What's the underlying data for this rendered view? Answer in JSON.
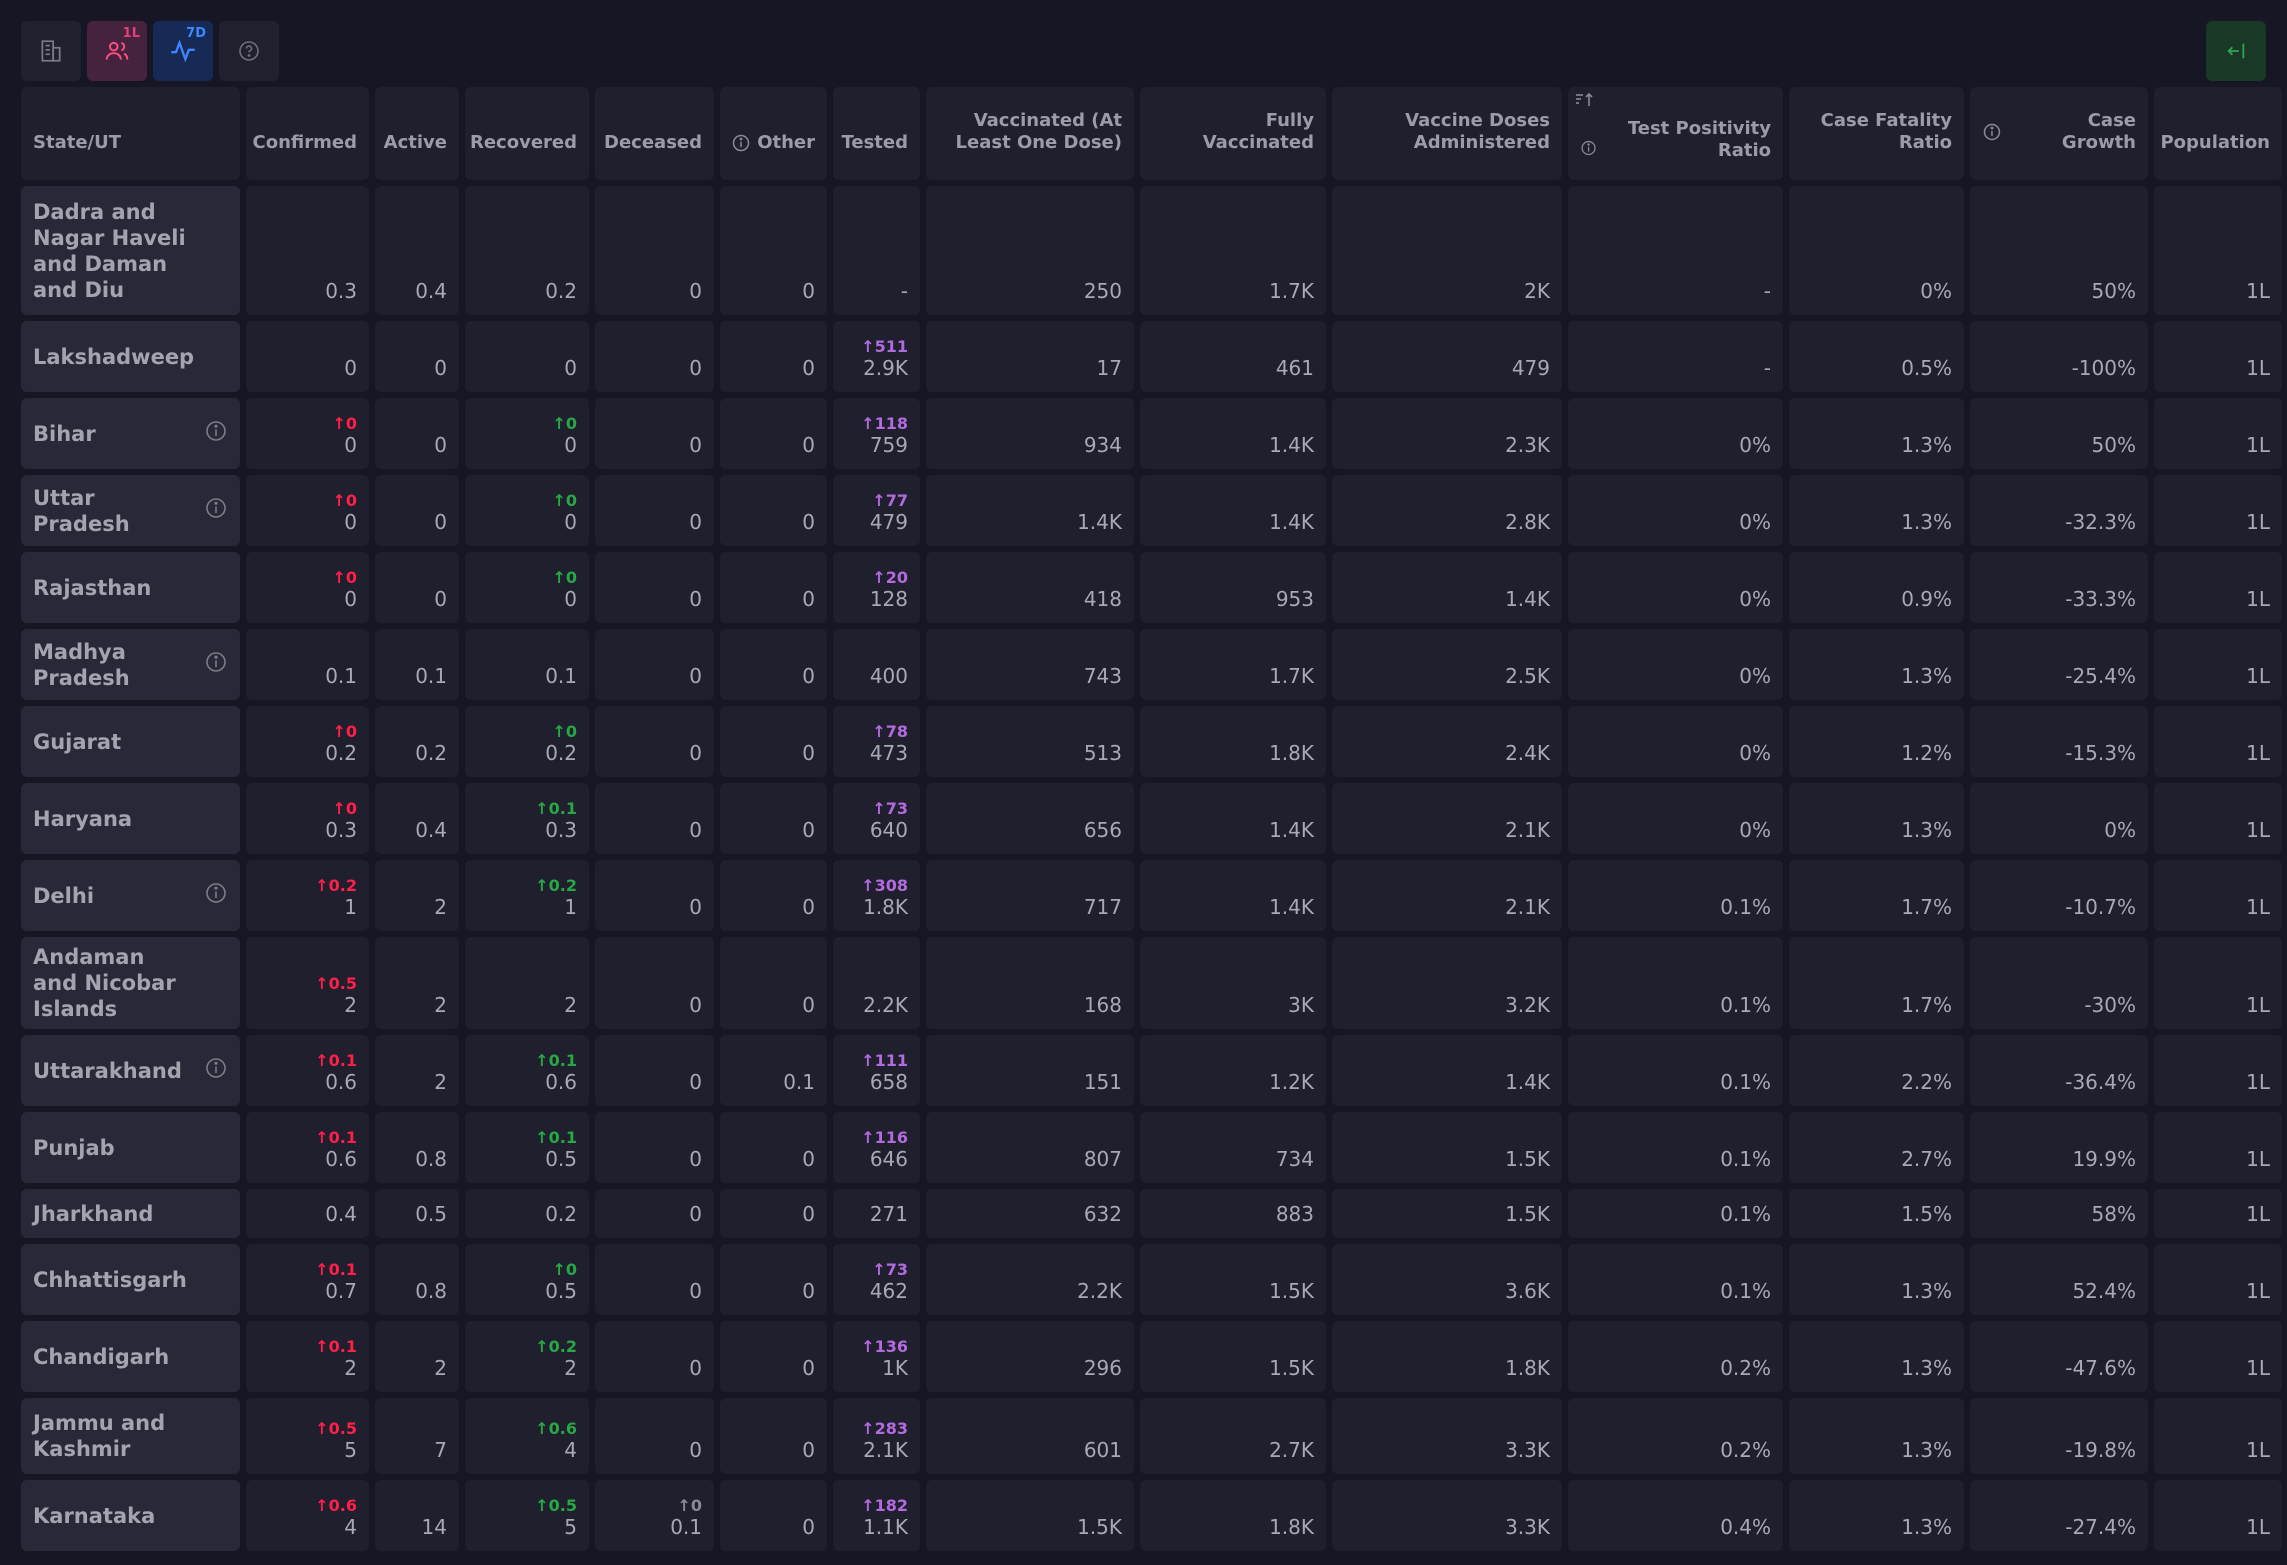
{
  "toolbar": {
    "buttons": [
      {
        "icon": "building-icon",
        "badge": ""
      },
      {
        "icon": "users-icon",
        "badge": "1L"
      },
      {
        "icon": "activity-icon",
        "badge": "7D"
      },
      {
        "icon": "help-circle-icon",
        "badge": ""
      }
    ],
    "right_button": {
      "icon": "collapse-left-icon"
    }
  },
  "columns": [
    "State/UT",
    "Confirmed",
    "Active",
    "Recovered",
    "Deceased",
    "Other",
    "Tested",
    "Vaccinated (At Least One Dose)",
    "Fully Vaccinated",
    "Vaccine Doses Administered",
    "Test Positivity Ratio",
    "Case Fatality Ratio",
    "Case Growth",
    "Population"
  ],
  "rows": [
    {
      "state": "Dadra and Nagar Haveli and Daman and Diu",
      "info": false,
      "cells": [
        {
          "v": "0.3"
        },
        {
          "v": "0.4"
        },
        {
          "v": "0.2"
        },
        {
          "v": "0"
        },
        {
          "v": "0"
        },
        {
          "v": "-"
        },
        {
          "v": "250"
        },
        {
          "v": "1.7K"
        },
        {
          "v": "2K"
        },
        {
          "v": "-"
        },
        {
          "v": "0%"
        },
        {
          "v": "50%"
        },
        {
          "v": "1L"
        }
      ]
    },
    {
      "state": "Lakshadweep",
      "info": false,
      "cells": [
        {
          "v": "0"
        },
        {
          "v": "0"
        },
        {
          "v": "0"
        },
        {
          "v": "0"
        },
        {
          "v": "0"
        },
        {
          "v": "2.9K",
          "d": "↑511"
        },
        {
          "v": "17"
        },
        {
          "v": "461"
        },
        {
          "v": "479"
        },
        {
          "v": "-"
        },
        {
          "v": "0.5%"
        },
        {
          "v": "-100%"
        },
        {
          "v": "1L"
        }
      ]
    },
    {
      "state": "Bihar",
      "info": true,
      "cells": [
        {
          "v": "0",
          "d": "↑0"
        },
        {
          "v": "0"
        },
        {
          "v": "0",
          "d": "↑0"
        },
        {
          "v": "0"
        },
        {
          "v": "0"
        },
        {
          "v": "759",
          "d": "↑118"
        },
        {
          "v": "934"
        },
        {
          "v": "1.4K"
        },
        {
          "v": "2.3K"
        },
        {
          "v": "0%"
        },
        {
          "v": "1.3%"
        },
        {
          "v": "50%"
        },
        {
          "v": "1L"
        }
      ]
    },
    {
      "state": "Uttar Pradesh",
      "info": true,
      "cells": [
        {
          "v": "0",
          "d": "↑0"
        },
        {
          "v": "0"
        },
        {
          "v": "0",
          "d": "↑0"
        },
        {
          "v": "0"
        },
        {
          "v": "0"
        },
        {
          "v": "479",
          "d": "↑77"
        },
        {
          "v": "1.4K"
        },
        {
          "v": "1.4K"
        },
        {
          "v": "2.8K"
        },
        {
          "v": "0%"
        },
        {
          "v": "1.3%"
        },
        {
          "v": "-32.3%"
        },
        {
          "v": "1L"
        }
      ]
    },
    {
      "state": "Rajasthan",
      "info": false,
      "cells": [
        {
          "v": "0",
          "d": "↑0"
        },
        {
          "v": "0"
        },
        {
          "v": "0",
          "d": "↑0"
        },
        {
          "v": "0"
        },
        {
          "v": "0"
        },
        {
          "v": "128",
          "d": "↑20"
        },
        {
          "v": "418"
        },
        {
          "v": "953"
        },
        {
          "v": "1.4K"
        },
        {
          "v": "0%"
        },
        {
          "v": "0.9%"
        },
        {
          "v": "-33.3%"
        },
        {
          "v": "1L"
        }
      ]
    },
    {
      "state": "Madhya Pradesh",
      "info": true,
      "cells": [
        {
          "v": "0.1"
        },
        {
          "v": "0.1"
        },
        {
          "v": "0.1"
        },
        {
          "v": "0"
        },
        {
          "v": "0"
        },
        {
          "v": "400"
        },
        {
          "v": "743"
        },
        {
          "v": "1.7K"
        },
        {
          "v": "2.5K"
        },
        {
          "v": "0%"
        },
        {
          "v": "1.3%"
        },
        {
          "v": "-25.4%"
        },
        {
          "v": "1L"
        }
      ]
    },
    {
      "state": "Gujarat",
      "info": false,
      "cells": [
        {
          "v": "0.2",
          "d": "↑0"
        },
        {
          "v": "0.2"
        },
        {
          "v": "0.2",
          "d": "↑0"
        },
        {
          "v": "0"
        },
        {
          "v": "0"
        },
        {
          "v": "473",
          "d": "↑78"
        },
        {
          "v": "513"
        },
        {
          "v": "1.8K"
        },
        {
          "v": "2.4K"
        },
        {
          "v": "0%"
        },
        {
          "v": "1.2%"
        },
        {
          "v": "-15.3%"
        },
        {
          "v": "1L"
        }
      ]
    },
    {
      "state": "Haryana",
      "info": false,
      "cells": [
        {
          "v": "0.3",
          "d": "↑0"
        },
        {
          "v": "0.4"
        },
        {
          "v": "0.3",
          "d": "↑0.1"
        },
        {
          "v": "0"
        },
        {
          "v": "0"
        },
        {
          "v": "640",
          "d": "↑73"
        },
        {
          "v": "656"
        },
        {
          "v": "1.4K"
        },
        {
          "v": "2.1K"
        },
        {
          "v": "0%"
        },
        {
          "v": "1.3%"
        },
        {
          "v": "0%"
        },
        {
          "v": "1L"
        }
      ]
    },
    {
      "state": "Delhi",
      "info": true,
      "cells": [
        {
          "v": "1",
          "d": "↑0.2"
        },
        {
          "v": "2"
        },
        {
          "v": "1",
          "d": "↑0.2"
        },
        {
          "v": "0"
        },
        {
          "v": "0"
        },
        {
          "v": "1.8K",
          "d": "↑308"
        },
        {
          "v": "717"
        },
        {
          "v": "1.4K"
        },
        {
          "v": "2.1K"
        },
        {
          "v": "0.1%"
        },
        {
          "v": "1.7%"
        },
        {
          "v": "-10.7%"
        },
        {
          "v": "1L"
        }
      ]
    },
    {
      "state": "Andaman and Nicobar Islands",
      "info": false,
      "cells": [
        {
          "v": "2",
          "d": "↑0.5"
        },
        {
          "v": "2"
        },
        {
          "v": "2"
        },
        {
          "v": "0"
        },
        {
          "v": "0"
        },
        {
          "v": "2.2K"
        },
        {
          "v": "168"
        },
        {
          "v": "3K"
        },
        {
          "v": "3.2K"
        },
        {
          "v": "0.1%"
        },
        {
          "v": "1.7%"
        },
        {
          "v": "-30%"
        },
        {
          "v": "1L"
        }
      ]
    },
    {
      "state": "Uttarakhand",
      "info": true,
      "cells": [
        {
          "v": "0.6",
          "d": "↑0.1"
        },
        {
          "v": "2"
        },
        {
          "v": "0.6",
          "d": "↑0.1"
        },
        {
          "v": "0"
        },
        {
          "v": "0.1"
        },
        {
          "v": "658",
          "d": "↑111"
        },
        {
          "v": "151"
        },
        {
          "v": "1.2K"
        },
        {
          "v": "1.4K"
        },
        {
          "v": "0.1%"
        },
        {
          "v": "2.2%"
        },
        {
          "v": "-36.4%"
        },
        {
          "v": "1L"
        }
      ]
    },
    {
      "state": "Punjab",
      "info": false,
      "cells": [
        {
          "v": "0.6",
          "d": "↑0.1"
        },
        {
          "v": "0.8"
        },
        {
          "v": "0.5",
          "d": "↑0.1"
        },
        {
          "v": "0"
        },
        {
          "v": "0"
        },
        {
          "v": "646",
          "d": "↑116"
        },
        {
          "v": "807"
        },
        {
          "v": "734"
        },
        {
          "v": "1.5K"
        },
        {
          "v": "0.1%"
        },
        {
          "v": "2.7%"
        },
        {
          "v": "19.9%"
        },
        {
          "v": "1L"
        }
      ]
    },
    {
      "state": "Jharkhand",
      "info": false,
      "cells": [
        {
          "v": "0.4"
        },
        {
          "v": "0.5"
        },
        {
          "v": "0.2"
        },
        {
          "v": "0"
        },
        {
          "v": "0"
        },
        {
          "v": "271"
        },
        {
          "v": "632"
        },
        {
          "v": "883"
        },
        {
          "v": "1.5K"
        },
        {
          "v": "0.1%"
        },
        {
          "v": "1.5%"
        },
        {
          "v": "58%"
        },
        {
          "v": "1L"
        }
      ]
    },
    {
      "state": "Chhattisgarh",
      "info": false,
      "cells": [
        {
          "v": "0.7",
          "d": "↑0.1"
        },
        {
          "v": "0.8"
        },
        {
          "v": "0.5",
          "d": "↑0"
        },
        {
          "v": "0"
        },
        {
          "v": "0"
        },
        {
          "v": "462",
          "d": "↑73"
        },
        {
          "v": "2.2K"
        },
        {
          "v": "1.5K"
        },
        {
          "v": "3.6K"
        },
        {
          "v": "0.1%"
        },
        {
          "v": "1.3%"
        },
        {
          "v": "52.4%"
        },
        {
          "v": "1L"
        }
      ]
    },
    {
      "state": "Chandigarh",
      "info": false,
      "cells": [
        {
          "v": "2",
          "d": "↑0.1"
        },
        {
          "v": "2"
        },
        {
          "v": "2",
          "d": "↑0.2"
        },
        {
          "v": "0"
        },
        {
          "v": "0"
        },
        {
          "v": "1K",
          "d": "↑136"
        },
        {
          "v": "296"
        },
        {
          "v": "1.5K"
        },
        {
          "v": "1.8K"
        },
        {
          "v": "0.2%"
        },
        {
          "v": "1.3%"
        },
        {
          "v": "-47.6%"
        },
        {
          "v": "1L"
        }
      ]
    },
    {
      "state": "Jammu and Kashmir",
      "info": false,
      "cells": [
        {
          "v": "5",
          "d": "↑0.5"
        },
        {
          "v": "7"
        },
        {
          "v": "4",
          "d": "↑0.6"
        },
        {
          "v": "0"
        },
        {
          "v": "0"
        },
        {
          "v": "2.1K",
          "d": "↑283"
        },
        {
          "v": "601"
        },
        {
          "v": "2.7K"
        },
        {
          "v": "3.3K"
        },
        {
          "v": "0.2%"
        },
        {
          "v": "1.3%"
        },
        {
          "v": "-19.8%"
        },
        {
          "v": "1L"
        }
      ]
    },
    {
      "state": "Karnataka",
      "info": false,
      "cells": [
        {
          "v": "4",
          "d": "↑0.6"
        },
        {
          "v": "14"
        },
        {
          "v": "5",
          "d": "↑0.5"
        },
        {
          "v": "0.1",
          "d": "↑0"
        },
        {
          "v": "0"
        },
        {
          "v": "1.1K",
          "d": "↑182"
        },
        {
          "v": "1.5K"
        },
        {
          "v": "1.8K"
        },
        {
          "v": "3.3K"
        },
        {
          "v": "0.4%"
        },
        {
          "v": "1.3%"
        },
        {
          "v": "-27.4%"
        },
        {
          "v": "1L"
        }
      ]
    }
  ]
}
